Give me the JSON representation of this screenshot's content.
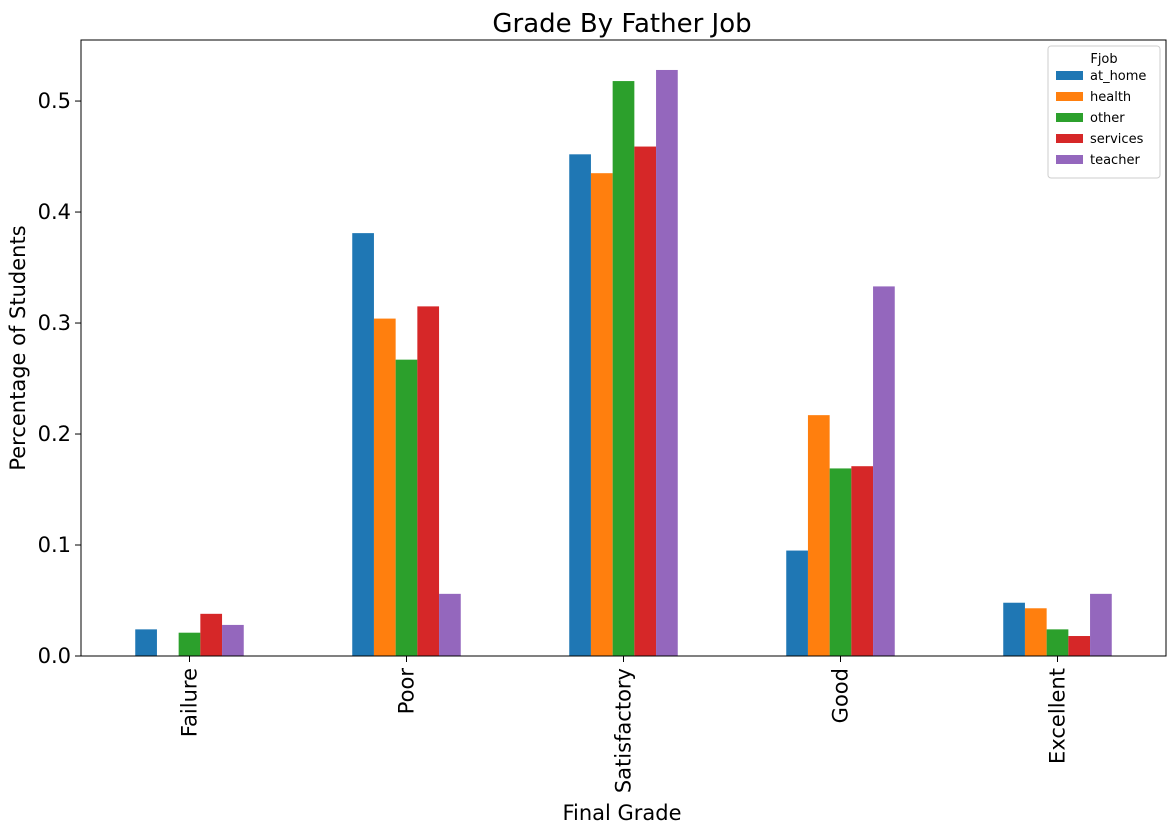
{
  "chart_data": {
    "type": "bar",
    "title": "Grade By Father Job",
    "xlabel": "Final Grade",
    "ylabel": "Percentage of Students",
    "categories": [
      "Failure",
      "Poor",
      "Satisfactory",
      "Good",
      "Excellent"
    ],
    "ylim": [
      0,
      0.555
    ],
    "yticks": [
      0.0,
      0.1,
      0.2,
      0.3,
      0.4,
      0.5
    ],
    "ytick_labels": [
      "0.0",
      "0.1",
      "0.2",
      "0.3",
      "0.4",
      "0.5"
    ],
    "grid": false,
    "legend": {
      "title": "Fjob",
      "placement": "top-right"
    },
    "series": [
      {
        "name": "at_home",
        "color": "#1f77b4",
        "values": [
          0.024,
          0.381,
          0.452,
          0.095,
          0.048
        ]
      },
      {
        "name": "health",
        "color": "#ff7f0e",
        "values": [
          0.0,
          0.304,
          0.435,
          0.217,
          0.043
        ]
      },
      {
        "name": "other",
        "color": "#2ca02c",
        "values": [
          0.021,
          0.267,
          0.518,
          0.169,
          0.024
        ]
      },
      {
        "name": "services",
        "color": "#d62728",
        "values": [
          0.038,
          0.315,
          0.459,
          0.171,
          0.018
        ]
      },
      {
        "name": "teacher",
        "color": "#9467bd",
        "values": [
          0.028,
          0.056,
          0.528,
          0.333,
          0.056
        ]
      }
    ]
  }
}
